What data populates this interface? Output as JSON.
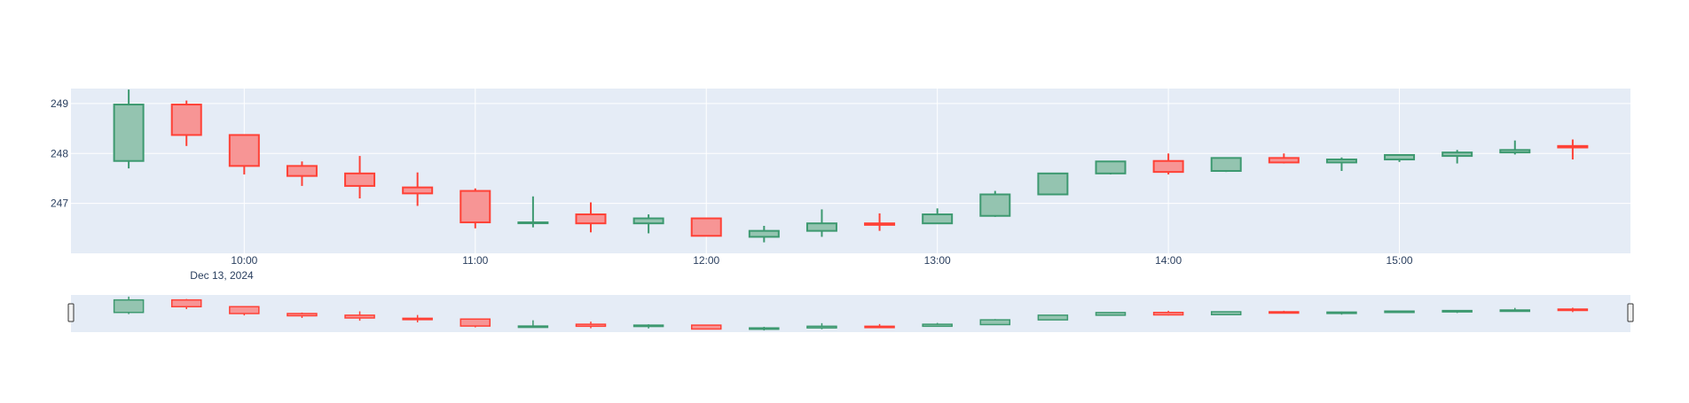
{
  "chart_data": {
    "type": "candlestick",
    "title": "",
    "xlabel": "",
    "ylabel": "",
    "x_tick_labels": [
      "10:00",
      "11:00",
      "12:00",
      "13:00",
      "14:00",
      "15:00"
    ],
    "x_date_label": "Dec 13, 2024",
    "y_tick_labels": [
      "247",
      "248",
      "249"
    ],
    "ylim": [
      246.0,
      249.3
    ],
    "grid": true,
    "rangeslider": true,
    "colors": {
      "increasing_line": "#3d9970",
      "increasing_fill": "#94c4b0",
      "decreasing_line": "#ff4136",
      "decreasing_fill": "#f79595",
      "plot_bg": "#e5ecf6",
      "grid": "#ffffff",
      "tick_text": "#2a3f5f"
    },
    "candles": [
      {
        "time": "09:30",
        "open": 247.85,
        "high": 249.28,
        "low": 247.7,
        "close": 248.98
      },
      {
        "time": "09:45",
        "open": 248.98,
        "high": 249.06,
        "low": 248.15,
        "close": 248.37
      },
      {
        "time": "10:00",
        "open": 248.37,
        "high": 248.37,
        "low": 247.58,
        "close": 247.75
      },
      {
        "time": "10:15",
        "open": 247.75,
        "high": 247.84,
        "low": 247.35,
        "close": 247.55
      },
      {
        "time": "10:30",
        "open": 247.6,
        "high": 247.95,
        "low": 247.1,
        "close": 247.35
      },
      {
        "time": "10:45",
        "open": 247.32,
        "high": 247.62,
        "low": 246.95,
        "close": 247.2
      },
      {
        "time": "11:00",
        "open": 247.25,
        "high": 247.3,
        "low": 246.5,
        "close": 246.62
      },
      {
        "time": "11:15",
        "open": 246.62,
        "high": 247.14,
        "low": 246.52,
        "close": 246.62
      },
      {
        "time": "11:30",
        "open": 246.78,
        "high": 247.02,
        "low": 246.42,
        "close": 246.6
      },
      {
        "time": "11:45",
        "open": 246.6,
        "high": 246.78,
        "low": 246.4,
        "close": 246.7
      },
      {
        "time": "12:00",
        "open": 246.7,
        "high": 246.7,
        "low": 246.35,
        "close": 246.35
      },
      {
        "time": "12:15",
        "open": 246.33,
        "high": 246.55,
        "low": 246.22,
        "close": 246.45
      },
      {
        "time": "12:30",
        "open": 246.45,
        "high": 246.88,
        "low": 246.33,
        "close": 246.6
      },
      {
        "time": "12:45",
        "open": 246.6,
        "high": 246.8,
        "low": 246.45,
        "close": 246.57
      },
      {
        "time": "13:00",
        "open": 246.6,
        "high": 246.9,
        "low": 246.6,
        "close": 246.78
      },
      {
        "time": "13:15",
        "open": 246.75,
        "high": 247.25,
        "low": 246.73,
        "close": 247.18
      },
      {
        "time": "13:30",
        "open": 247.18,
        "high": 247.6,
        "low": 247.17,
        "close": 247.6
      },
      {
        "time": "13:45",
        "open": 247.6,
        "high": 247.85,
        "low": 247.58,
        "close": 247.84
      },
      {
        "time": "14:00",
        "open": 247.85,
        "high": 248.0,
        "low": 247.58,
        "close": 247.63
      },
      {
        "time": "14:15",
        "open": 247.65,
        "high": 247.92,
        "low": 247.63,
        "close": 247.91
      },
      {
        "time": "14:30",
        "open": 247.91,
        "high": 248.0,
        "low": 247.8,
        "close": 247.82
      },
      {
        "time": "14:45",
        "open": 247.82,
        "high": 247.92,
        "low": 247.65,
        "close": 247.88
      },
      {
        "time": "15:00",
        "open": 247.88,
        "high": 247.98,
        "low": 247.83,
        "close": 247.97
      },
      {
        "time": "15:15",
        "open": 247.95,
        "high": 248.07,
        "low": 247.8,
        "close": 248.02
      },
      {
        "time": "15:30",
        "open": 248.02,
        "high": 248.26,
        "low": 247.98,
        "close": 248.07
      },
      {
        "time": "15:45",
        "open": 248.15,
        "high": 248.28,
        "low": 247.88,
        "close": 248.12
      }
    ]
  }
}
